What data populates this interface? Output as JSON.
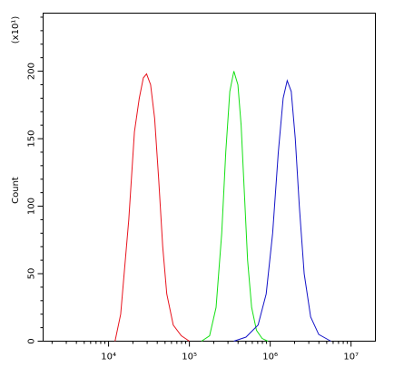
{
  "chart_data": {
    "type": "line",
    "y_label": "Count",
    "y_multiplier": "(x10¹)",
    "xscale": "log",
    "xlim": [
      1550,
      20000000
    ],
    "ylim": [
      0,
      243
    ],
    "xticks": [
      {
        "value": 10000,
        "label": "10⁴"
      },
      {
        "value": 100000,
        "label": "10⁵"
      },
      {
        "value": 1000000,
        "label": "10⁶"
      },
      {
        "value": 10000000,
        "label": "10⁷"
      }
    ],
    "xminorticks": [
      2000,
      3000,
      4000,
      5000,
      6000,
      7000,
      8000,
      9000,
      20000,
      30000,
      40000,
      50000,
      60000,
      70000,
      80000,
      90000,
      200000,
      300000,
      400000,
      500000,
      600000,
      700000,
      800000,
      900000,
      2000000,
      3000000,
      4000000,
      5000000,
      6000000,
      7000000,
      8000000,
      9000000
    ],
    "yticks": [
      0,
      50,
      100,
      150,
      200
    ],
    "yminorticks": [
      10,
      20,
      30,
      40,
      60,
      70,
      80,
      90,
      110,
      120,
      130,
      140,
      160,
      170,
      180,
      190,
      210,
      220,
      230,
      240
    ],
    "series": [
      {
        "color": "#e8141e",
        "x": [
          12023,
          14125,
          17783,
          20893,
          23988,
          26915,
          29512,
          33113,
          37154,
          41687,
          46774,
          52481,
          63096,
          79433,
          100000
        ],
        "values": [
          0,
          20,
          90,
          155,
          180,
          195,
          198,
          190,
          165,
          120,
          70,
          35,
          12,
          4,
          0
        ]
      },
      {
        "color": "#14e014",
        "x": [
          141254,
          177828,
          213796,
          251189,
          281838,
          316228,
          354813,
          398107,
          436516,
          478630,
          524807,
          588844,
          676083,
          794328,
          933254
        ],
        "values": [
          0,
          4,
          25,
          80,
          140,
          185,
          200,
          190,
          160,
          110,
          60,
          25,
          8,
          2,
          0
        ]
      },
      {
        "color": "#1414c8",
        "x": [
          354813,
          501187,
          707946,
          891251,
          1071519,
          1258925,
          1445440,
          1621810,
          1819701,
          2041738,
          2290868,
          2630268,
          3162278,
          3981072,
          5623413
        ],
        "values": [
          0,
          3,
          12,
          35,
          80,
          140,
          180,
          193,
          185,
          150,
          100,
          50,
          18,
          5,
          0
        ]
      }
    ]
  }
}
